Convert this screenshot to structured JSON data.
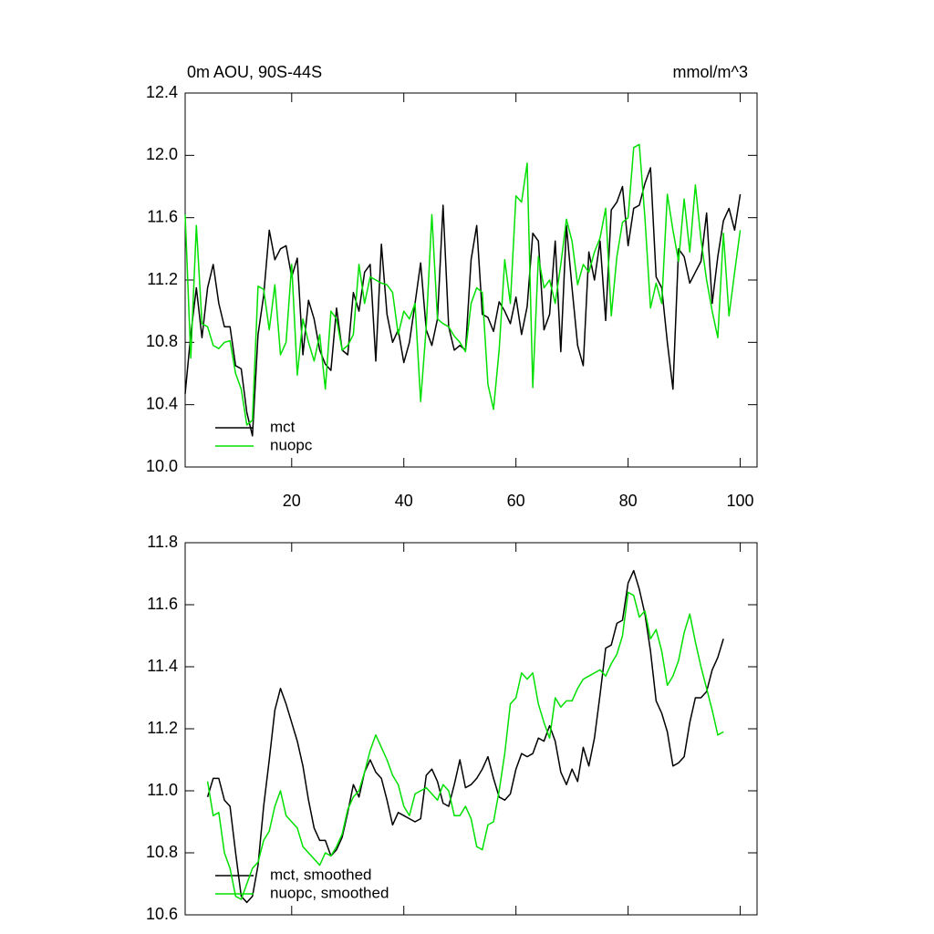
{
  "chart_data": [
    {
      "type": "line",
      "title": "0m AOU, 90S-44S",
      "units": "mmol/m^3",
      "legend": "lower left",
      "x": [
        1,
        2,
        3,
        4,
        5,
        6,
        7,
        8,
        9,
        10,
        11,
        12,
        13,
        14,
        15,
        16,
        17,
        18,
        19,
        20,
        21,
        22,
        23,
        24,
        25,
        26,
        27,
        28,
        29,
        30,
        31,
        32,
        33,
        34,
        35,
        36,
        37,
        38,
        39,
        40,
        41,
        42,
        43,
        44,
        45,
        46,
        47,
        48,
        49,
        50,
        51,
        52,
        53,
        54,
        55,
        56,
        57,
        58,
        59,
        60,
        61,
        62,
        63,
        64,
        65,
        66,
        67,
        68,
        69,
        70,
        71,
        72,
        73,
        74,
        75,
        76,
        77,
        78,
        79,
        80,
        81,
        82,
        83,
        84,
        85,
        86,
        87,
        88,
        89,
        90,
        91,
        92,
        93,
        94,
        95,
        96,
        97,
        98,
        99,
        100
      ],
      "xlim": [
        1,
        103
      ],
      "xticks": [
        20,
        40,
        60,
        80,
        100
      ],
      "ylim": [
        10.0,
        12.4
      ],
      "yticks": [
        {
          "value": 10,
          "label": "10.0"
        },
        10.4,
        10.8,
        11.2,
        11.6,
        {
          "value": 12,
          "label": "12.0"
        },
        12.4
      ],
      "series": [
        {
          "name": "mct",
          "color": "#000000",
          "values": [
            10.47,
            10.85,
            11.15,
            10.83,
            11.15,
            11.3,
            11.05,
            10.9,
            10.9,
            10.65,
            10.63,
            10.35,
            10.2,
            10.85,
            11.1,
            11.52,
            11.33,
            11.4,
            11.42,
            11.22,
            11.34,
            10.72,
            11.07,
            10.95,
            10.75,
            10.66,
            10.62,
            11.02,
            10.75,
            10.72,
            11.12,
            11.0,
            11.25,
            11.3,
            10.68,
            11.43,
            10.98,
            10.8,
            10.88,
            10.67,
            10.8,
            11.05,
            11.31,
            10.88,
            10.78,
            10.95,
            11.68,
            10.9,
            10.75,
            10.78,
            10.75,
            11.33,
            11.55,
            10.98,
            10.96,
            10.87,
            11.06,
            11.0,
            10.92,
            11.09,
            10.85,
            11.03,
            11.5,
            11.45,
            10.88,
            10.98,
            11.45,
            10.74,
            11.55,
            11.15,
            10.78,
            10.65,
            11.38,
            11.2,
            11.45,
            10.94,
            11.65,
            11.7,
            11.8,
            11.42,
            11.66,
            11.68,
            11.82,
            11.92,
            11.22,
            11.15,
            10.8,
            10.5,
            11.4,
            11.35,
            11.18,
            11.25,
            11.32,
            11.63,
            11.05,
            11.35,
            11.58,
            11.66,
            11.52,
            11.75
          ]
        },
        {
          "name": "nuopc",
          "color": "#00e000",
          "values": [
            11.62,
            10.7,
            11.55,
            10.92,
            10.9,
            10.78,
            10.76,
            10.8,
            10.81,
            10.6,
            10.5,
            10.27,
            10.3,
            11.16,
            11.14,
            10.88,
            11.17,
            10.72,
            10.8,
            11.3,
            10.59,
            10.95,
            10.8,
            10.68,
            10.85,
            10.5,
            11.0,
            10.95,
            10.75,
            10.78,
            10.85,
            11.3,
            11.05,
            11.22,
            11.2,
            11.18,
            11.17,
            11.12,
            10.85,
            11.0,
            10.95,
            11.05,
            10.42,
            10.9,
            11.62,
            10.95,
            10.92,
            10.9,
            10.84,
            10.8,
            10.74,
            11.05,
            11.15,
            11.12,
            10.53,
            10.37,
            10.75,
            11.33,
            11.05,
            11.74,
            11.7,
            11.95,
            10.51,
            11.35,
            11.15,
            11.2,
            11.05,
            11.3,
            11.59,
            11.45,
            11.17,
            11.3,
            11.25,
            11.38,
            11.47,
            11.66,
            10.97,
            11.35,
            11.57,
            11.6,
            12.05,
            12.07,
            11.6,
            11.02,
            11.18,
            11.05,
            11.75,
            11.52,
            11.32,
            11.72,
            11.38,
            11.81,
            11.46,
            11.2,
            11.0,
            10.83,
            11.5,
            10.97,
            11.25,
            11.52
          ]
        }
      ]
    },
    {
      "type": "line",
      "legend": "lower left",
      "x": [
        5,
        6,
        7,
        8,
        9,
        10,
        11,
        12,
        13,
        14,
        15,
        16,
        17,
        18,
        19,
        20,
        21,
        22,
        23,
        24,
        25,
        26,
        27,
        28,
        29,
        30,
        31,
        32,
        33,
        34,
        35,
        36,
        37,
        38,
        39,
        40,
        41,
        42,
        43,
        44,
        45,
        46,
        47,
        48,
        49,
        50,
        51,
        52,
        53,
        54,
        55,
        56,
        57,
        58,
        59,
        60,
        61,
        62,
        63,
        64,
        65,
        66,
        67,
        68,
        69,
        70,
        71,
        72,
        73,
        74,
        75,
        76,
        77,
        78,
        79,
        80,
        81,
        82,
        83,
        84,
        85,
        86,
        87,
        88,
        89,
        90,
        91,
        92,
        93,
        94,
        95,
        96,
        97
      ],
      "xlim": [
        1,
        103
      ],
      "xticks": [
        20,
        40,
        60,
        80,
        100
      ],
      "ylim": [
        10.6,
        11.8
      ],
      "yticks": [
        10.6,
        10.8,
        {
          "value": 11,
          "label": "11.0"
        },
        11.2,
        11.4,
        11.6,
        11.8
      ],
      "series": [
        {
          "name": "mct, smoothed",
          "color": "#000000",
          "values": [
            10.98,
            11.04,
            11.04,
            10.97,
            10.95,
            10.8,
            10.66,
            10.64,
            10.66,
            10.76,
            10.95,
            11.1,
            11.26,
            11.33,
            11.28,
            11.22,
            11.16,
            11.08,
            10.97,
            10.88,
            10.84,
            10.84,
            10.79,
            10.81,
            10.85,
            10.93,
            11.02,
            10.98,
            11.06,
            11.1,
            11.06,
            11.04,
            10.97,
            10.89,
            10.93,
            10.92,
            10.91,
            10.9,
            10.91,
            11.05,
            11.07,
            11.03,
            10.96,
            10.95,
            11.02,
            11.1,
            11.01,
            11.02,
            11.04,
            11.07,
            11.11,
            11.04,
            10.98,
            10.97,
            10.99,
            11.07,
            11.12,
            11.11,
            11.12,
            11.17,
            11.16,
            11.21,
            11.16,
            11.06,
            11.02,
            11.07,
            11.03,
            11.14,
            11.08,
            11.17,
            11.31,
            11.46,
            11.47,
            11.54,
            11.55,
            11.67,
            11.71,
            11.65,
            11.57,
            11.45,
            11.29,
            11.25,
            11.19,
            11.08,
            11.09,
            11.11,
            11.22,
            11.3,
            11.3,
            11.32,
            11.39,
            11.43,
            11.49
          ]
        },
        {
          "name": "nuopc, smoothed",
          "color": "#00e000",
          "values": [
            11.03,
            10.92,
            10.93,
            10.8,
            10.75,
            10.66,
            10.65,
            10.7,
            10.75,
            10.77,
            10.84,
            10.87,
            10.95,
            11.0,
            10.92,
            10.9,
            10.88,
            10.82,
            10.8,
            10.78,
            10.76,
            10.8,
            10.79,
            10.82,
            10.86,
            10.94,
            10.98,
            11.0,
            11.06,
            11.13,
            11.18,
            11.14,
            11.1,
            11.05,
            11.02,
            10.95,
            10.92,
            10.99,
            11.0,
            11.01,
            10.99,
            10.97,
            11.02,
            11.0,
            10.92,
            10.92,
            10.95,
            10.91,
            10.82,
            10.81,
            10.89,
            10.9,
            11.0,
            11.12,
            11.28,
            11.3,
            11.38,
            11.36,
            11.38,
            11.28,
            11.22,
            11.17,
            11.3,
            11.27,
            11.29,
            11.29,
            11.33,
            11.36,
            11.37,
            11.38,
            11.39,
            11.37,
            11.41,
            11.44,
            11.5,
            11.64,
            11.63,
            11.56,
            11.58,
            11.49,
            11.52,
            11.45,
            11.34,
            11.37,
            11.42,
            11.51,
            11.57,
            11.48,
            11.4,
            11.33,
            11.26,
            11.18,
            11.19
          ]
        }
      ]
    }
  ]
}
